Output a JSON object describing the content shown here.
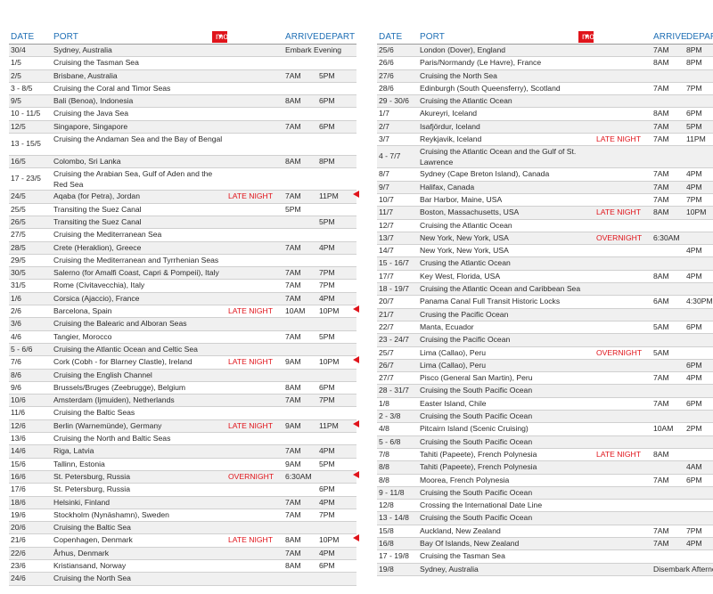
{
  "headers": {
    "date": "DATE",
    "port": "PORT",
    "more_ashore": "more ashore",
    "arrive": "ARRIVE",
    "depart": "DEPART"
  },
  "colors": {
    "accent": "#e0141b",
    "header_text": "#1f6fb5",
    "alt_row": "#f0f0f0"
  },
  "left_rows": [
    {
      "date": "30/4",
      "port": "Sydney, Australia",
      "note": "",
      "arrive": "Embark Evening",
      "depart": "",
      "marker": false
    },
    {
      "date": "1/5",
      "port": "Cruising the Tasman Sea",
      "note": "",
      "arrive": "",
      "depart": "",
      "marker": false
    },
    {
      "date": "2/5",
      "port": "Brisbane, Australia",
      "note": "",
      "arrive": "7AM",
      "depart": "5PM",
      "marker": false
    },
    {
      "date": "3 - 8/5",
      "port": "Cruising the Coral and Timor Seas",
      "note": "",
      "arrive": "",
      "depart": "",
      "marker": false
    },
    {
      "date": "9/5",
      "port": "Bali (Benoa), Indonesia",
      "note": "",
      "arrive": "8AM",
      "depart": "6PM",
      "marker": false
    },
    {
      "date": "10 - 11/5",
      "port": "Cruising the Java Sea",
      "note": "",
      "arrive": "",
      "depart": "",
      "marker": false
    },
    {
      "date": "12/5",
      "port": "Singapore, Singapore",
      "note": "",
      "arrive": "7AM",
      "depart": "6PM",
      "marker": false
    },
    {
      "date": "13 - 15/5",
      "port": "Cruising the Andaman Sea and the Bay of Bengal",
      "note": "",
      "arrive": "",
      "depart": "",
      "marker": false,
      "tall": true
    },
    {
      "date": "16/5",
      "port": "Colombo, Sri Lanka",
      "note": "",
      "arrive": "8AM",
      "depart": "8PM",
      "marker": false
    },
    {
      "date": "17 - 23/5",
      "port": "Cruising the Arabian Sea, Gulf of Aden and the Red Sea",
      "note": "",
      "arrive": "",
      "depart": "",
      "marker": false,
      "tall": true
    },
    {
      "date": "24/5",
      "port": "Aqaba (for Petra), Jordan",
      "note": "LATE NIGHT",
      "arrive": "7AM",
      "depart": "11PM",
      "marker": true
    },
    {
      "date": "25/5",
      "port": "Transiting the Suez Canal",
      "note": "",
      "arrive": "5PM",
      "depart": "",
      "marker": false
    },
    {
      "date": "26/5",
      "port": "Transiting the Suez Canal",
      "note": "",
      "arrive": "",
      "depart": "5PM",
      "marker": false
    },
    {
      "date": "27/5",
      "port": "Cruising the Mediterranean Sea",
      "note": "",
      "arrive": "",
      "depart": "",
      "marker": false
    },
    {
      "date": "28/5",
      "port": "Crete (Heraklion), Greece",
      "note": "",
      "arrive": "7AM",
      "depart": "4PM",
      "marker": false
    },
    {
      "date": "29/5",
      "port": "Cruising the Mediterranean and Tyrrhenian Seas",
      "note": "",
      "arrive": "",
      "depart": "",
      "marker": false
    },
    {
      "date": "30/5",
      "port": "Salerno (for Amalfi Coast, Capri & Pompeii), Italy",
      "note": "",
      "arrive": "7AM",
      "depart": "7PM",
      "marker": false
    },
    {
      "date": "31/5",
      "port": "Rome (Civitavecchia), Italy",
      "note": "",
      "arrive": "7AM",
      "depart": "7PM",
      "marker": false
    },
    {
      "date": "1/6",
      "port": "Corsica (Ajaccio), France",
      "note": "",
      "arrive": "7AM",
      "depart": "4PM",
      "marker": false
    },
    {
      "date": "2/6",
      "port": "Barcelona, Spain",
      "note": "LATE NIGHT",
      "arrive": "10AM",
      "depart": "10PM",
      "marker": true
    },
    {
      "date": "3/6",
      "port": "Cruising the Balearic and Alboran Seas",
      "note": "",
      "arrive": "",
      "depart": "",
      "marker": false
    },
    {
      "date": "4/6",
      "port": "Tangier, Morocco",
      "note": "",
      "arrive": "7AM",
      "depart": "5PM",
      "marker": false
    },
    {
      "date": "5 - 6/6",
      "port": "Cruising the Atlantic Ocean and Celtic Sea",
      "note": "",
      "arrive": "",
      "depart": "",
      "marker": false
    },
    {
      "date": "7/6",
      "port": "Cork (Cobh - for Blarney Clastle), Ireland",
      "note": "LATE NIGHT",
      "arrive": "9AM",
      "depart": "10PM",
      "marker": true
    },
    {
      "date": "8/6",
      "port": "Cruising the English Channel",
      "note": "",
      "arrive": "",
      "depart": "",
      "marker": false
    },
    {
      "date": "9/6",
      "port": "Brussels/Bruges (Zeebrugge), Belgium",
      "note": "",
      "arrive": "8AM",
      "depart": "6PM",
      "marker": false
    },
    {
      "date": "10/6",
      "port": "Amsterdam (Ijmuiden), Netherlands",
      "note": "",
      "arrive": "7AM",
      "depart": "7PM",
      "marker": false
    },
    {
      "date": "11/6",
      "port": "Cruising the Baltic Seas",
      "note": "",
      "arrive": "",
      "depart": "",
      "marker": false
    },
    {
      "date": "12/6",
      "port": "Berlin (Warnemünde), Germany",
      "note": "LATE NIGHT",
      "arrive": "9AM",
      "depart": "11PM",
      "marker": true
    },
    {
      "date": "13/6",
      "port": "Cruising the North and Baltic Seas",
      "note": "",
      "arrive": "",
      "depart": "",
      "marker": false
    },
    {
      "date": "14/6",
      "port": "Riga, Latvia",
      "note": "",
      "arrive": "7AM",
      "depart": "4PM",
      "marker": false
    },
    {
      "date": "15/6",
      "port": "Tallinn, Estonia",
      "note": "",
      "arrive": "9AM",
      "depart": "5PM",
      "marker": false
    },
    {
      "date": "16/6",
      "port": "St. Petersburg, Russia",
      "note": "OVERNIGHT",
      "arrive": "6:30AM",
      "depart": "",
      "marker": true
    },
    {
      "date": "17/6",
      "port": "St. Petersburg, Russia",
      "note": "",
      "arrive": "",
      "depart": "6PM",
      "marker": false
    },
    {
      "date": "18/6",
      "port": "Helsinki, Finland",
      "note": "",
      "arrive": "7AM",
      "depart": "4PM",
      "marker": false
    },
    {
      "date": "19/6",
      "port": "Stockholm (Nynäshamn), Sweden",
      "note": "",
      "arrive": "7AM",
      "depart": "7PM",
      "marker": false
    },
    {
      "date": "20/6",
      "port": "Cruising the Baltic Sea",
      "note": "",
      "arrive": "",
      "depart": "",
      "marker": false
    },
    {
      "date": "21/6",
      "port": "Copenhagen, Denmark",
      "note": "LATE NIGHT",
      "arrive": "8AM",
      "depart": "10PM",
      "marker": true
    },
    {
      "date": "22/6",
      "port": "Århus, Denmark",
      "note": "",
      "arrive": "7AM",
      "depart": "4PM",
      "marker": false
    },
    {
      "date": "23/6",
      "port": "Kristiansand, Norway",
      "note": "",
      "arrive": "8AM",
      "depart": "6PM",
      "marker": false
    },
    {
      "date": "24/6",
      "port": "Cruising the North Sea",
      "note": "",
      "arrive": "",
      "depart": "",
      "marker": false
    }
  ],
  "right_rows": [
    {
      "date": "25/6",
      "port": "London (Dover), England",
      "note": "",
      "arrive": "7AM",
      "depart": "8PM"
    },
    {
      "date": "26/6",
      "port": "Paris/Normandy (Le Havre), France",
      "note": "",
      "arrive": "8AM",
      "depart": "8PM"
    },
    {
      "date": "27/6",
      "port": "Cruising the North Sea",
      "note": "",
      "arrive": "",
      "depart": ""
    },
    {
      "date": "28/6",
      "port": "Edinburgh (South Queensferry), Scotland",
      "note": "",
      "arrive": "7AM",
      "depart": "7PM"
    },
    {
      "date": "29 - 30/6",
      "port": "Cruising the Atlantic Ocean",
      "note": "",
      "arrive": "",
      "depart": ""
    },
    {
      "date": "1/7",
      "port": "Akureyri, Iceland",
      "note": "",
      "arrive": "8AM",
      "depart": "6PM"
    },
    {
      "date": "2/7",
      "port": "Isafjördur, Iceland",
      "note": "",
      "arrive": "7AM",
      "depart": "5PM"
    },
    {
      "date": "3/7",
      "port": "Reykjavik, Iceland",
      "note": "LATE NIGHT",
      "arrive": "7AM",
      "depart": "11PM"
    },
    {
      "date": "4 - 7/7",
      "port": "Cruising the Atlantic Ocean and the Gulf of St. Lawrence",
      "note": "",
      "arrive": "",
      "depart": "",
      "tall": true
    },
    {
      "date": "8/7",
      "port": "Sydney (Cape Breton Island), Canada",
      "note": "",
      "arrive": "7AM",
      "depart": "4PM"
    },
    {
      "date": "9/7",
      "port": "Halifax, Canada",
      "note": "",
      "arrive": "7AM",
      "depart": "4PM"
    },
    {
      "date": "10/7",
      "port": "Bar Harbor, Maine, USA",
      "note": "",
      "arrive": "7AM",
      "depart": "7PM"
    },
    {
      "date": "11/7",
      "port": "Boston, Massachusetts, USA",
      "note": "LATE NIGHT",
      "arrive": "8AM",
      "depart": "10PM"
    },
    {
      "date": "12/7",
      "port": "Cruising the Atlantic Ocean",
      "note": "",
      "arrive": "",
      "depart": ""
    },
    {
      "date": "13/7",
      "port": "New York, New York, USA",
      "note": "OVERNIGHT",
      "arrive": "6:30AM",
      "depart": ""
    },
    {
      "date": "14/7",
      "port": "New York, New York, USA",
      "note": "",
      "arrive": "",
      "depart": "4PM"
    },
    {
      "date": "15 - 16/7",
      "port": "Crusing the Atlantic Ocean",
      "note": "",
      "arrive": "",
      "depart": ""
    },
    {
      "date": "17/7",
      "port": "Key West, Florida, USA",
      "note": "",
      "arrive": "8AM",
      "depart": "4PM"
    },
    {
      "date": "18 - 19/7",
      "port": "Cruising the Atlantic Ocean and Caribbean Sea",
      "note": "",
      "arrive": "",
      "depart": ""
    },
    {
      "date": "20/7",
      "port": "Panama Canal Full Transit Historic Locks",
      "note": "",
      "arrive": "6AM",
      "depart": "4:30PM"
    },
    {
      "date": "21/7",
      "port": "Crusing the Pacific Ocean",
      "note": "",
      "arrive": "",
      "depart": ""
    },
    {
      "date": "22/7",
      "port": "Manta, Ecuador",
      "note": "",
      "arrive": "5AM",
      "depart": "6PM"
    },
    {
      "date": "23 - 24/7",
      "port": "Cruising the Pacific Ocean",
      "note": "",
      "arrive": "",
      "depart": ""
    },
    {
      "date": "25/7",
      "port": "Lima (Callao), Peru",
      "note": "OVERNIGHT",
      "arrive": "5AM",
      "depart": ""
    },
    {
      "date": "26/7",
      "port": "Lima (Callao), Peru",
      "note": "",
      "arrive": "",
      "depart": "6PM"
    },
    {
      "date": "27/7",
      "port": "Pisco (General San Martin), Peru",
      "note": "",
      "arrive": "7AM",
      "depart": "4PM"
    },
    {
      "date": "28 - 31/7",
      "port": "Cruising the South Pacific Ocean",
      "note": "",
      "arrive": "",
      "depart": ""
    },
    {
      "date": "1/8",
      "port": "Easter Island, Chile",
      "note": "",
      "arrive": "7AM",
      "depart": "6PM"
    },
    {
      "date": "2 - 3/8",
      "port": "Cruising the South Pacific Ocean",
      "note": "",
      "arrive": "",
      "depart": ""
    },
    {
      "date": "4/8",
      "port": "Pitcairn Island (Scenic Cruising)",
      "note": "",
      "arrive": "10AM",
      "depart": "2PM"
    },
    {
      "date": "5 - 6/8",
      "port": "Cruising the South Pacific Ocean",
      "note": "",
      "arrive": "",
      "depart": ""
    },
    {
      "date": "7/8",
      "port": "Tahiti (Papeete), French Polynesia",
      "note": "LATE NIGHT",
      "arrive": "8AM",
      "depart": ""
    },
    {
      "date": "8/8",
      "port": "Tahiti (Papeete), French Polynesia",
      "note": "",
      "arrive": "",
      "depart": "4AM"
    },
    {
      "date": "8/8",
      "port": "Moorea, French Polynesia",
      "note": "",
      "arrive": "7AM",
      "depart": "6PM"
    },
    {
      "date": "9 - 11/8",
      "port": "Cruising the South Pacific Ocean",
      "note": "",
      "arrive": "",
      "depart": ""
    },
    {
      "date": "12/8",
      "port": "Crossing the International Date Line",
      "note": "",
      "arrive": "",
      "depart": ""
    },
    {
      "date": "13 - 14/8",
      "port": "Cruising the South Pacific Ocean",
      "note": "",
      "arrive": "",
      "depart": ""
    },
    {
      "date": "15/8",
      "port": "Auckland, New Zealand",
      "note": "",
      "arrive": "7AM",
      "depart": "7PM"
    },
    {
      "date": "16/8",
      "port": "Bay Of Islands, New Zealand",
      "note": "",
      "arrive": "7AM",
      "depart": "4PM"
    },
    {
      "date": "17 - 19/8",
      "port": "Cruising the Tasman Sea",
      "note": "",
      "arrive": "",
      "depart": ""
    },
    {
      "date": "19/8",
      "port": "Sydney, Australia",
      "note": "",
      "arrive": "Disembark Afternoon",
      "depart": ""
    }
  ]
}
